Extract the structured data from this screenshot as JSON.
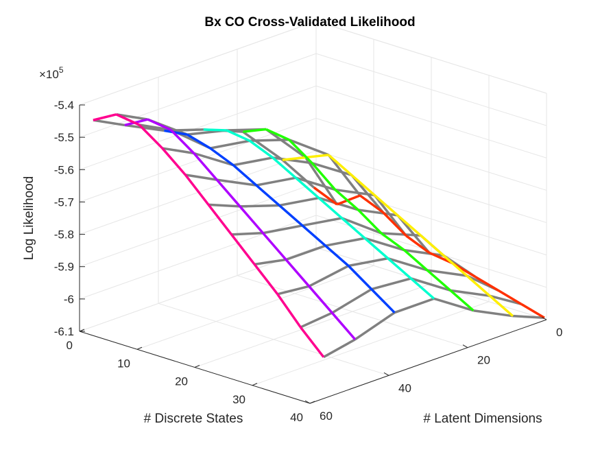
{
  "chart_data": {
    "type": "line",
    "title": "Bx CO Cross-Validated Likelihood",
    "xlabel": "# Discrete States",
    "ylabel": "# Latent Dimensions",
    "zlabel": "Log Likelihood",
    "z_exponent_label": "×10",
    "z_exponent_power": "5",
    "x_ticks": [
      "0",
      "10",
      "20",
      "30",
      "40"
    ],
    "y_ticks": [
      "0",
      "20",
      "40",
      "60"
    ],
    "z_ticks": [
      "-5.4",
      "-5.5",
      "-5.6",
      "-5.7",
      "-5.8",
      "-5.9",
      "-6",
      "-6.1"
    ],
    "xlim": [
      0,
      40
    ],
    "ylim": [
      0,
      60
    ],
    "zlim": [
      -6.1,
      -5.4
    ],
    "grid": true,
    "view": "3-D oblique",
    "surface_style": "mesh wireframe: colored lines along Discrete States (one hue per Latent Dimensions value, hsv colormap), gray cross-lines along Latent Dimensions",
    "colors": {
      "mesh_gray": "#808080",
      "colormap": "hsv"
    },
    "series_sampled": [
      {
        "latent_dims": 2,
        "discrete_states": [
          1,
          5,
          9,
          13,
          17,
          21,
          25,
          29,
          33,
          37,
          41
        ],
        "log_likelihood_x1e5": [
          -5.9,
          -5.93,
          -5.88,
          -5.91,
          -5.96,
          -5.99,
          -6.0,
          -6.02,
          -6.04,
          -6.06,
          -6.08
        ]
      },
      {
        "latent_dims": 10,
        "discrete_states": [
          1,
          5,
          9,
          13,
          17,
          21,
          25,
          29,
          33,
          37,
          41
        ],
        "log_likelihood_x1e5": [
          -5.78,
          -5.75,
          -5.72,
          -5.76,
          -5.8,
          -5.84,
          -5.88,
          -5.92,
          -5.96,
          -6.0,
          -6.04
        ]
      },
      {
        "latent_dims": 20,
        "discrete_states": [
          1,
          5,
          9,
          13,
          17,
          21,
          25,
          29,
          33,
          37,
          41
        ],
        "log_likelihood_x1e5": [
          -5.65,
          -5.62,
          -5.63,
          -5.68,
          -5.74,
          -5.78,
          -5.83,
          -5.86,
          -5.9,
          -5.94,
          -5.98
        ]
      },
      {
        "latent_dims": 30,
        "discrete_states": [
          1,
          5,
          9,
          13,
          17,
          21,
          25,
          29,
          33,
          37,
          41
        ],
        "log_likelihood_x1e5": [
          -5.6,
          -5.58,
          -5.59,
          -5.62,
          -5.66,
          -5.7,
          -5.74,
          -5.78,
          -5.82,
          -5.86,
          -5.9
        ]
      },
      {
        "latent_dims": 40,
        "discrete_states": [
          1,
          5,
          9,
          13,
          17,
          21,
          25,
          29,
          33,
          37,
          41
        ],
        "log_likelihood_x1e5": [
          -5.56,
          -5.55,
          -5.57,
          -5.6,
          -5.64,
          -5.68,
          -5.72,
          -5.76,
          -5.8,
          -5.85,
          -5.9
        ]
      },
      {
        "latent_dims": 50,
        "discrete_states": [
          1,
          5,
          9,
          13,
          17,
          21,
          25,
          29,
          33,
          37,
          41
        ],
        "log_likelihood_x1e5": [
          -5.5,
          -5.46,
          -5.47,
          -5.52,
          -5.58,
          -5.64,
          -5.7,
          -5.76,
          -5.82,
          -5.88,
          -5.94
        ]
      },
      {
        "latent_dims": 58,
        "discrete_states": [
          1,
          5,
          9,
          13,
          17,
          21,
          25,
          29,
          33,
          37,
          41
        ],
        "log_likelihood_x1e5": [
          -5.45,
          -5.41,
          -5.42,
          -5.47,
          -5.53,
          -5.6,
          -5.67,
          -5.74,
          -5.81,
          -5.89,
          -5.96
        ]
      }
    ]
  }
}
